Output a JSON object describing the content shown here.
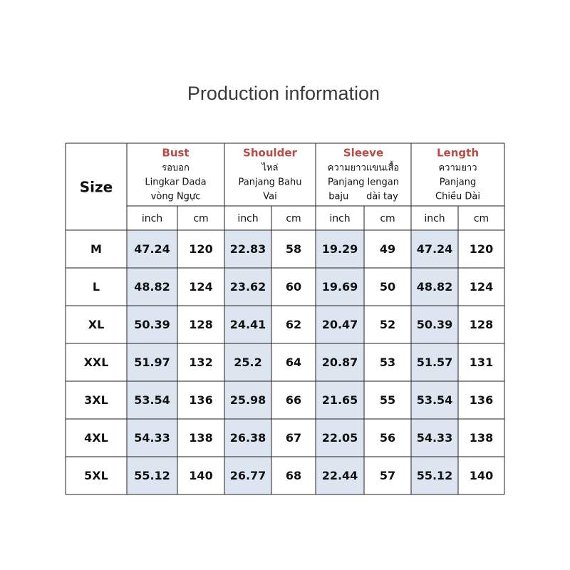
{
  "header": {
    "title": "Production information"
  },
  "table": {
    "size_label": "Size",
    "groups": [
      {
        "name": "Bust",
        "lines": [
          "รอบอก",
          "Lingkar Dada",
          "vòng Ngực"
        ]
      },
      {
        "name": "Shoulder",
        "lines": [
          "ไหล่",
          "Panjang Bahu",
          "Vai"
        ]
      },
      {
        "name": "Sleeve",
        "lines": [
          "ความยาวแขนเสื้อ",
          "Panjang lengan",
          "baju      dài tay"
        ]
      },
      {
        "name": "Length",
        "lines": [
          "ความยาว",
          "Panjang",
          "Chiều Dài"
        ]
      }
    ],
    "units": [
      "inch",
      "cm",
      "inch",
      "cm",
      "inch",
      "cm",
      "inch",
      "cm"
    ],
    "rows": [
      [
        "M",
        "47.24",
        "120",
        "22.83",
        "58",
        "19.29",
        "49",
        "47.24",
        "120"
      ],
      [
        "L",
        "48.82",
        "124",
        "23.62",
        "60",
        "19.69",
        "50",
        "48.82",
        "124"
      ],
      [
        "XL",
        "50.39",
        "128",
        "24.41",
        "62",
        "20.47",
        "52",
        "50.39",
        "128"
      ],
      [
        "XXL",
        "51.97",
        "132",
        "25.2",
        "64",
        "20.87",
        "53",
        "51.57",
        "131"
      ],
      [
        "3XL",
        "53.54",
        "136",
        "25.98",
        "66",
        "21.65",
        "55",
        "53.54",
        "136"
      ],
      [
        "4XL",
        "54.33",
        "138",
        "26.38",
        "67",
        "22.05",
        "56",
        "54.33",
        "138"
      ],
      [
        "5XL",
        "55.12",
        "140",
        "26.77",
        "68",
        "22.44",
        "57",
        "55.12",
        "140"
      ]
    ]
  }
}
